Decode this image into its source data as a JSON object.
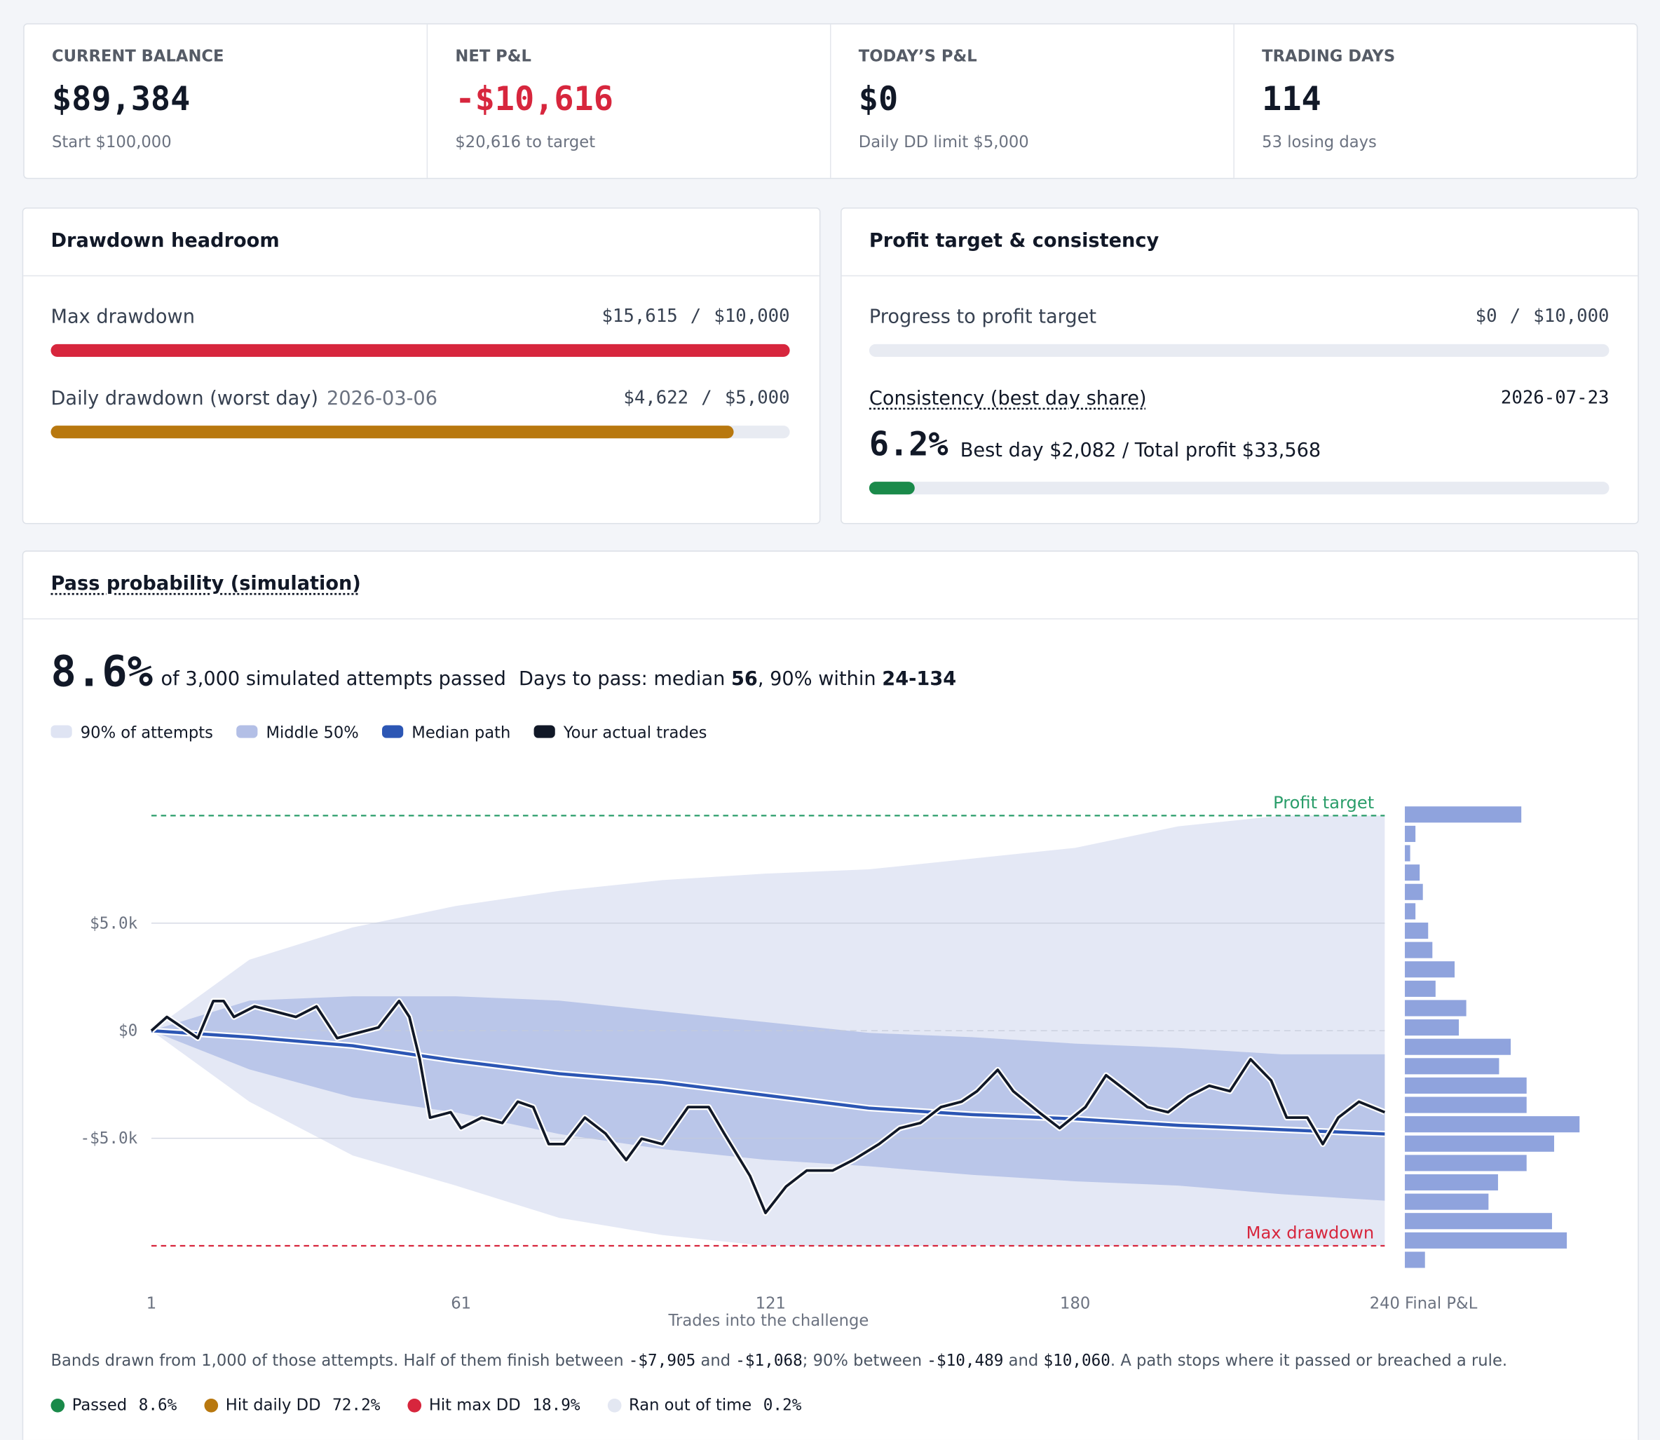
{
  "stats": [
    {
      "label": "CURRENT BALANCE",
      "value": "$89,384",
      "sub": "Start $100,000",
      "color": "#111827"
    },
    {
      "label": "NET P&L",
      "value": "-$10,616",
      "sub": "$20,616 to target",
      "color": "#d7263d"
    },
    {
      "label": "TODAY’S P&L",
      "value": "$0",
      "sub": "Daily DD limit $5,000",
      "color": "#111827"
    },
    {
      "label": "TRADING DAYS",
      "value": "114",
      "sub": "53 losing days",
      "color": "#111827"
    }
  ],
  "drawdown": {
    "title": "Drawdown headroom",
    "separator": "/",
    "rows": [
      {
        "label": "Max drawdown",
        "used": {
          "value": 15615,
          "label": "$15,615"
        },
        "limit": {
          "value": 10000,
          "label": "$10,000"
        },
        "color": "#d7263d"
      },
      {
        "label": "Daily drawdown (worst day)",
        "date": "2026-03-06",
        "used": {
          "value": 4622,
          "label": "$4,622"
        },
        "limit": {
          "value": 5000,
          "label": "$5,000"
        },
        "color": "#b8780f"
      }
    ]
  },
  "profit": {
    "title": "Profit target & consistency",
    "separator": "/",
    "progress": {
      "label": "Progress to profit target",
      "used": {
        "value": 0,
        "label": "$0"
      },
      "limit": {
        "value": 10000,
        "label": "$10,000"
      },
      "color": "#1a8a4a"
    },
    "consistency": {
      "label": "Consistency (best day share)",
      "date": "2026-07-23",
      "share": {
        "value": 6.2,
        "label": "6.2%"
      },
      "detail": "Best day $2,082 / Total profit $33,568",
      "color": "#1a8a4a"
    }
  },
  "simulation": {
    "title": "Pass probability (simulation)",
    "pass_rate": {
      "value": 8.6,
      "label": "8.6%"
    },
    "pass_text": "of 3,000 simulated attempts passed",
    "days": [
      "Days to pass: median ",
      "56",
      ", 90% within ",
      "24-134"
    ],
    "footnote": [
      "Bands drawn from 1,000 of those attempts. Half of them finish between ",
      "-$7,905",
      " and ",
      "-$1,068",
      "; 90% between ",
      "-$10,489",
      " and ",
      "$10,060",
      ". A path stops where it passed or breached a rule."
    ],
    "outcomes": [
      {
        "label": "Passed",
        "value": "8.6%",
        "color": "#1a8a4a"
      },
      {
        "label": "Hit daily DD",
        "value": "72.2%",
        "color": "#b8780f"
      },
      {
        "label": "Hit max DD",
        "value": "18.9%",
        "color": "#d7263d"
      },
      {
        "label": "Ran out of time",
        "value": "0.2%",
        "color": "#e3e7f2"
      }
    ]
  },
  "chart_data": {
    "type": "fan",
    "xlabel": "Trades into the challenge",
    "xlim": [
      1,
      240
    ],
    "ylim": [
      -11000,
      11000
    ],
    "xticks": [
      1,
      61,
      121,
      180,
      240
    ],
    "yticks": [
      {
        "value": 5000,
        "label": "$5.0k"
      },
      {
        "value": 0,
        "label": "$0"
      },
      {
        "value": -5000,
        "label": "-$5.0k"
      }
    ],
    "grid": true,
    "bands": [
      {
        "name": "90% of attempts",
        "color": "#dfe4f3",
        "x": [
          1,
          20,
          40,
          60,
          80,
          100,
          120,
          140,
          160,
          180,
          200,
          220,
          240
        ],
        "lower": [
          0,
          -3300,
          -5800,
          -7200,
          -8700,
          -9500,
          -10000,
          -10000,
          -10000,
          -10000,
          -10000,
          -10000,
          -10000
        ],
        "upper": [
          0,
          3300,
          4800,
          5800,
          6500,
          7000,
          7300,
          7500,
          8000,
          8500,
          9500,
          10000,
          10000
        ]
      },
      {
        "name": "Middle 50%",
        "color": "#b3bfe6",
        "x": [
          1,
          20,
          40,
          60,
          80,
          100,
          120,
          140,
          160,
          180,
          200,
          220,
          240
        ],
        "lower": [
          0,
          -1800,
          -3100,
          -3800,
          -4800,
          -5500,
          -6000,
          -6300,
          -6700,
          -7000,
          -7200,
          -7600,
          -7900
        ],
        "upper": [
          0,
          1400,
          1600,
          1600,
          1400,
          900,
          400,
          -100,
          -300,
          -600,
          -800,
          -1100,
          -1100
        ]
      }
    ],
    "series": [
      {
        "name": "Median path",
        "color": "#2c56b4",
        "width": 3,
        "x": [
          1,
          20,
          40,
          60,
          80,
          100,
          120,
          140,
          160,
          180,
          200,
          220,
          240
        ],
        "values": [
          0,
          -300,
          -700,
          -1400,
          -2000,
          -2400,
          -3000,
          -3600,
          -3900,
          -4100,
          -4400,
          -4600,
          -4800
        ]
      },
      {
        "name": "Your actual trades",
        "color": "#111827",
        "width": 2.5,
        "x": [
          1,
          4,
          7,
          10,
          13,
          15,
          17,
          21,
          25,
          29,
          33,
          37,
          41,
          45,
          49,
          51,
          53,
          55,
          59,
          61,
          65,
          69,
          72,
          75,
          78,
          81,
          85,
          89,
          93,
          96,
          100,
          105,
          109,
          112,
          117,
          120,
          124,
          128,
          133,
          137,
          142,
          146,
          150,
          154,
          158,
          161,
          165,
          168,
          173,
          177,
          182,
          186,
          190,
          194,
          198,
          202,
          206,
          210,
          214,
          218,
          221,
          225,
          228,
          231,
          235,
          240
        ],
        "values": [
          0,
          640,
          150,
          -345,
          1380,
          1380,
          640,
          1130,
          890,
          640,
          1130,
          -345,
          -100,
          150,
          1380,
          640,
          -1330,
          -4040,
          -3790,
          -4530,
          -4040,
          -4290,
          -3300,
          -3550,
          -5270,
          -5270,
          -4040,
          -4780,
          -6010,
          -5020,
          -5270,
          -3550,
          -3550,
          -4780,
          -6750,
          -8470,
          -7240,
          -6500,
          -6500,
          -6010,
          -5270,
          -4530,
          -4290,
          -3550,
          -3300,
          -2810,
          -1820,
          -2810,
          -3790,
          -4530,
          -3550,
          -2070,
          -2810,
          -3550,
          -3790,
          -3050,
          -2560,
          -2810,
          -1330,
          -2320,
          -4040,
          -4040,
          -5270,
          -4040,
          -3300,
          -3790
        ]
      }
    ],
    "reference_lines": [
      {
        "label": "Profit target",
        "value": 10000,
        "color": "#2a9d6a"
      },
      {
        "label": "Max drawdown",
        "value": -10000,
        "color": "#d7263d"
      }
    ],
    "histogram": {
      "label": "Final P&L",
      "color": "#8fa3dd",
      "bins": [
        -11100,
        -10200,
        -9300,
        -8400,
        -7500,
        -6600,
        -5700,
        -4800,
        -3900,
        -3000,
        -2100,
        -1200,
        -300,
        600,
        1500,
        2400,
        3300,
        4200,
        5100,
        6000,
        6900,
        7800,
        8700,
        9600,
        10500
      ],
      "counts": [
        19,
        153,
        139,
        79,
        88,
        115,
        141,
        165,
        115,
        115,
        89,
        100,
        51,
        58,
        29,
        47,
        26,
        22,
        10,
        17,
        14,
        5,
        10,
        110
      ]
    }
  }
}
